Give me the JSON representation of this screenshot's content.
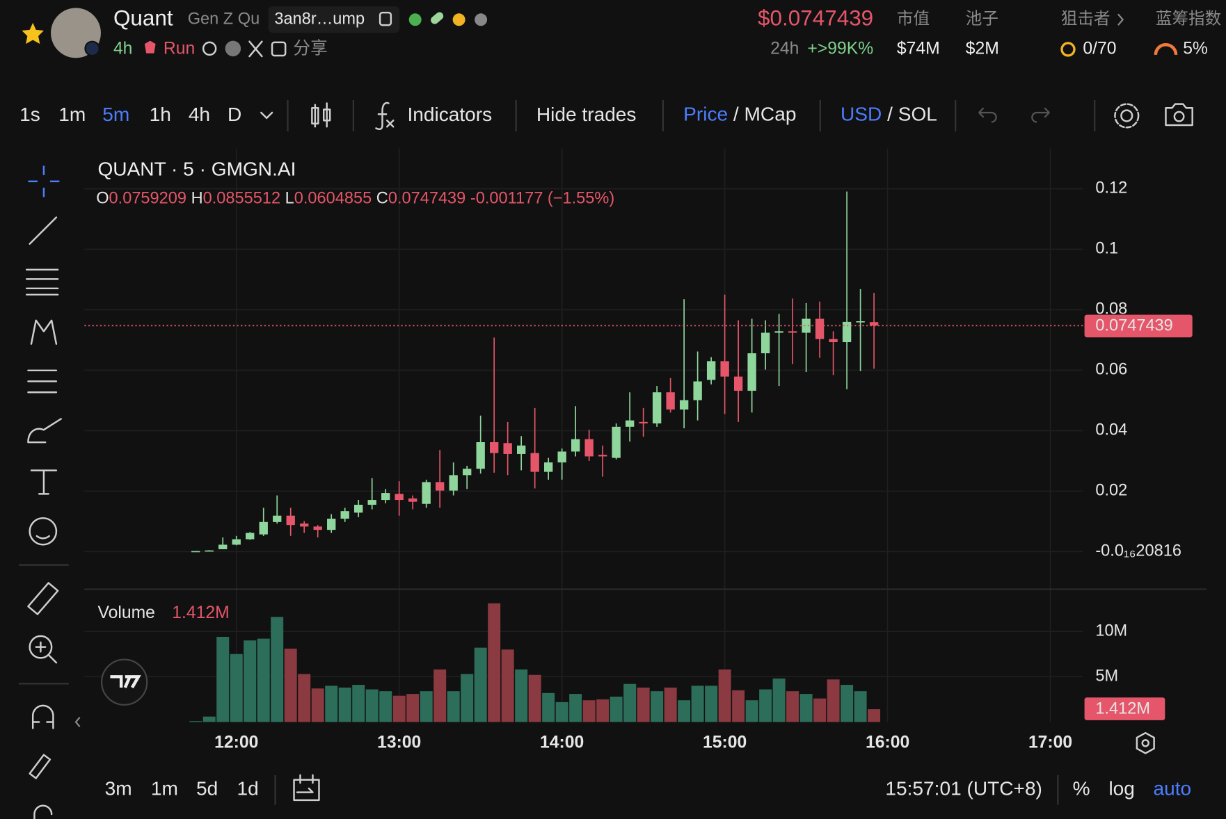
{
  "header": {
    "name": "Quant",
    "fullname": "Gen Z Qu",
    "address": "3an8r…ump",
    "age": "4h",
    "tag": "Run",
    "share": "分享",
    "price": "$0.0747439",
    "change_label": "24h",
    "change": "+>99K%",
    "mcap_label": "市值",
    "mcap": "$74M",
    "pool_label": "池子",
    "pool": "$2M",
    "sniper_label": "狙击者",
    "sniper": "0/70",
    "bluechip_label": "蓝筹指数",
    "bluechip": "5%"
  },
  "toolbar": {
    "intervals": [
      "1s",
      "1m",
      "5m",
      "1h",
      "4h",
      "D"
    ],
    "active_interval": 2,
    "indicators": "Indicators",
    "hide_trades": "Hide trades",
    "price": "Price",
    "separator": "/",
    "mcap": "MCap",
    "usd": "USD",
    "sol": "SOL"
  },
  "chart_data": {
    "type": "candlestick",
    "title": "QUANT · 5 · GMGN.AI",
    "ohlc_letters": [
      "O",
      "H",
      "L",
      "C"
    ],
    "change_text": "-0.001177 (−1.55%)",
    "x": [
      "11:45",
      "11:50",
      "11:55",
      "12:00",
      "12:05",
      "12:10",
      "12:15",
      "12:20",
      "12:25",
      "12:30",
      "12:35",
      "12:40",
      "12:45",
      "12:50",
      "12:55",
      "13:00",
      "13:05",
      "13:10",
      "13:15",
      "13:20",
      "13:25",
      "13:30",
      "13:35",
      "13:40",
      "13:45",
      "13:50",
      "13:55",
      "14:00",
      "14:05",
      "14:10",
      "14:15",
      "14:20",
      "14:25",
      "14:30",
      "14:35",
      "14:40",
      "14:45",
      "14:50",
      "14:55",
      "15:00",
      "15:05",
      "15:10",
      "15:15",
      "15:20",
      "15:25",
      "15:30",
      "15:35",
      "15:40",
      "15:45",
      "15:50",
      "15:55"
    ],
    "open": [
      0.0001,
      0.0002,
      0.0008,
      0.0023,
      0.0041,
      0.0057,
      0.0098,
      0.0119,
      0.0093,
      0.0083,
      0.0072,
      0.0109,
      0.0129,
      0.0155,
      0.0171,
      0.0191,
      0.0176,
      0.0158,
      0.023,
      0.0202,
      0.0253,
      0.0274,
      0.0362,
      0.0359,
      0.0323,
      0.0326,
      0.0264,
      0.0295,
      0.0331,
      0.0372,
      0.032,
      0.031,
      0.0413,
      0.0429,
      0.0424,
      0.0527,
      0.047,
      0.0501,
      0.0568,
      0.063,
      0.0579,
      0.0532,
      0.0656,
      0.0724,
      0.0729,
      0.0724,
      0.077,
      0.0703,
      0.0693,
      0.076,
      0.0759209
    ],
    "high": [
      0.0002,
      0.0005,
      0.0047,
      0.0052,
      0.0065,
      0.0145,
      0.0186,
      0.0145,
      0.0101,
      0.0088,
      0.0124,
      0.0145,
      0.0171,
      0.0243,
      0.0207,
      0.0233,
      0.0186,
      0.0238,
      0.0336,
      0.0295,
      0.0284,
      0.045,
      0.0708,
      0.0429,
      0.0382,
      0.0475,
      0.031,
      0.0341,
      0.0481,
      0.0403,
      0.0351,
      0.0424,
      0.0527,
      0.0475,
      0.0548,
      0.0574,
      0.0835,
      0.0662,
      0.0643,
      0.085,
      0.0765,
      0.077,
      0.0765,
      0.0786,
      0.0837,
      0.0822,
      0.0827,
      0.0729,
      0.1191,
      0.0868,
      0.0855512
    ],
    "low": [
      0.0001,
      0.0002,
      0.0008,
      0.0021,
      0.0039,
      0.0052,
      0.0093,
      0.0052,
      0.0062,
      0.0047,
      0.0062,
      0.0098,
      0.0114,
      0.014,
      0.016,
      0.0119,
      0.014,
      0.0145,
      0.0145,
      0.0186,
      0.0207,
      0.0258,
      0.0261,
      0.0253,
      0.0269,
      0.0209,
      0.0238,
      0.0238,
      0.0315,
      0.03,
      0.0248,
      0.0305,
      0.0364,
      0.038,
      0.0413,
      0.046,
      0.0408,
      0.0434,
      0.0553,
      0.0455,
      0.0429,
      0.046,
      0.0602,
      0.0548,
      0.062,
      0.0594,
      0.0641,
      0.0584,
      0.0537,
      0.0597,
      0.0604855
    ],
    "close": [
      0.0002,
      0.0004,
      0.0023,
      0.0041,
      0.0062,
      0.0098,
      0.0119,
      0.0088,
      0.0083,
      0.0072,
      0.0109,
      0.0134,
      0.0155,
      0.0171,
      0.0194,
      0.0171,
      0.0165,
      0.023,
      0.0202,
      0.0253,
      0.0274,
      0.0362,
      0.0326,
      0.0323,
      0.0351,
      0.0264,
      0.0295,
      0.0331,
      0.0372,
      0.0315,
      0.0315,
      0.0413,
      0.0434,
      0.0424,
      0.0527,
      0.047,
      0.0501,
      0.0563,
      0.063,
      0.0579,
      0.0532,
      0.0656,
      0.0724,
      0.0729,
      0.0724,
      0.077,
      0.0703,
      0.0693,
      0.076,
      0.0762,
      0.0747439
    ],
    "volume_label": "Volume",
    "volume": [
      0.1,
      0.6,
      9.4,
      7.5,
      9.0,
      9.2,
      11.6,
      8.1,
      5.3,
      3.7,
      4.0,
      3.8,
      4.1,
      3.6,
      3.4,
      2.9,
      3.1,
      3.4,
      5.8,
      3.4,
      5.3,
      8.2,
      13.1,
      8.0,
      5.8,
      5.2,
      3.2,
      2.2,
      3.1,
      2.4,
      2.5,
      2.8,
      4.2,
      3.8,
      3.4,
      3.8,
      2.4,
      4.0,
      4.0,
      5.8,
      3.5,
      2.4,
      3.6,
      4.8,
      3.4,
      3.1,
      2.6,
      4.7,
      4.1,
      3.4,
      1.412
    ],
    "volume_value_labels": [
      null,
      null,
      null,
      null,
      null,
      null,
      null,
      null,
      null,
      null,
      null,
      null,
      null,
      null,
      null,
      null,
      null,
      null,
      null,
      null,
      null,
      null,
      null,
      null,
      null,
      null,
      null,
      null,
      null,
      null,
      null,
      null,
      null,
      null,
      null,
      null,
      null,
      null,
      null,
      null,
      null,
      null,
      null,
      null,
      null,
      null,
      null,
      null,
      null,
      null,
      "1.412M"
    ],
    "xlim": [
      "11:04",
      "17:12"
    ],
    "xticks": [
      "12:00",
      "13:00",
      "14:00",
      "15:00",
      "16:00",
      "17:00"
    ],
    "ylim": [
      -0.0119,
      0.1333
    ],
    "yticks": [
      {
        "value": 0,
        "label": "-0.0₁₆20816"
      },
      0.02,
      0.04,
      0.06,
      0.08,
      0.1,
      0.12
    ],
    "volume_lim": [
      0,
      14.14
    ],
    "volume_ticks": [
      {
        "value": 5,
        "label": "5M"
      },
      {
        "value": 10,
        "label": "10M"
      }
    ],
    "grid": true,
    "up_color": "#8fd69c",
    "down_color": "#e5566a",
    "volume_up_color": "#2d6e5a",
    "volume_down_color": "#8a3a40"
  },
  "footer": {
    "ranges": [
      "3m",
      "1m",
      "5d",
      "1d"
    ],
    "time": "15:57:01 (UTC+8)",
    "percent": "%",
    "log": "log",
    "auto": "auto"
  }
}
